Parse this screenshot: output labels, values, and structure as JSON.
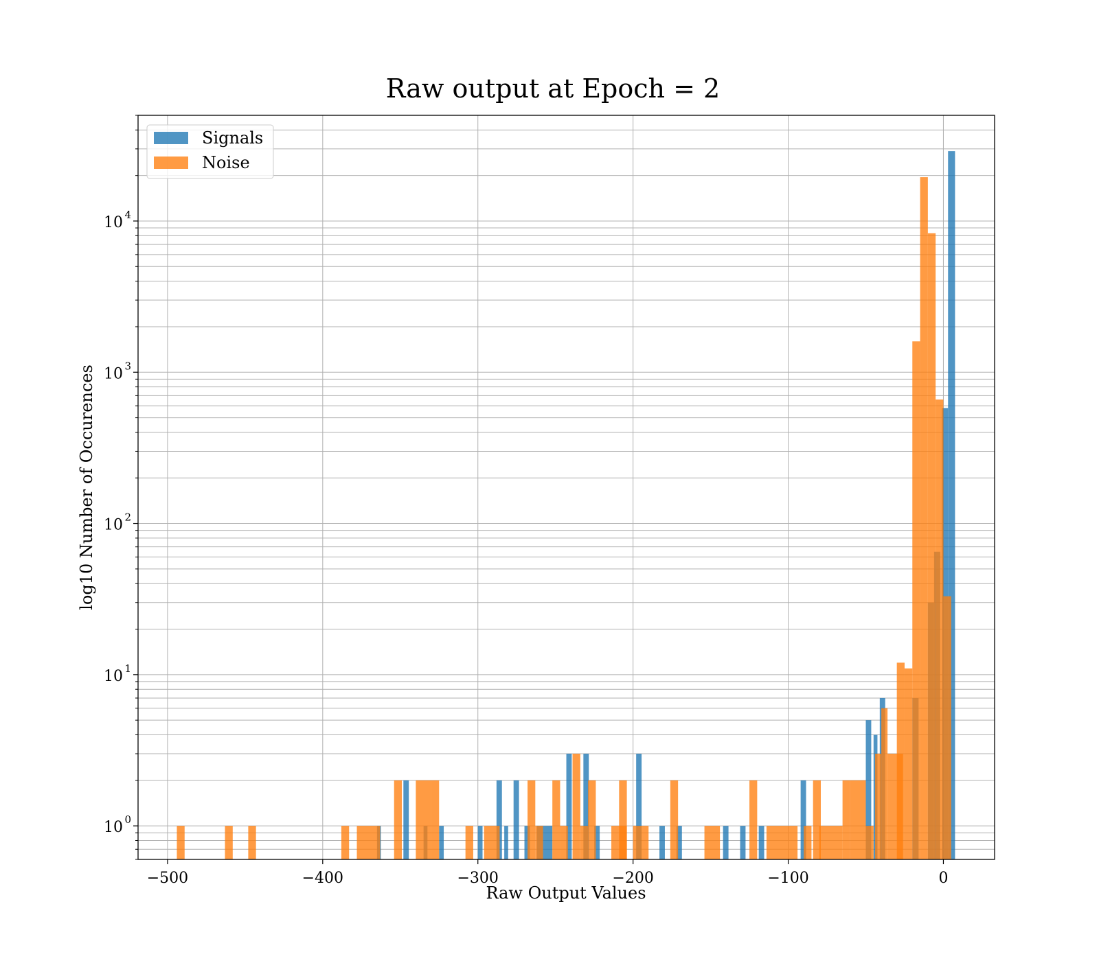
{
  "chart_data": {
    "type": "bar",
    "title": "Raw output at Epoch = 2",
    "xlabel": "Raw Output Values",
    "ylabel": "log10 Number of Occurences",
    "xlim": [
      -519,
      33
    ],
    "ylim": [
      0.6,
      50000
    ],
    "yscale": "log",
    "grid": true,
    "legend_position": "top-left",
    "bin_width": 5.0,
    "x_ticks": [
      {
        "value": -500,
        "label": "−500"
      },
      {
        "value": -400,
        "label": "−400"
      },
      {
        "value": -300,
        "label": "−300"
      },
      {
        "value": -200,
        "label": "−200"
      },
      {
        "value": -100,
        "label": "−100"
      },
      {
        "value": 0,
        "label": "0"
      }
    ],
    "y_ticks": [
      {
        "value": 1,
        "base": "10",
        "exp": "0"
      },
      {
        "value": 10,
        "base": "10",
        "exp": "1"
      },
      {
        "value": 100,
        "base": "10",
        "exp": "2"
      },
      {
        "value": 1000,
        "base": "10",
        "exp": "3"
      },
      {
        "value": 10000,
        "base": "10",
        "exp": "4"
      }
    ],
    "series": [
      {
        "name": "Signals",
        "color": "#1f77b4",
        "opacity": 0.78,
        "bins": [
          {
            "x": -365,
            "w": 2.5,
            "count": 1
          },
          {
            "x": -348,
            "w": 3.5,
            "count": 2
          },
          {
            "x": -335,
            "w": 2.5,
            "count": 1
          },
          {
            "x": -325,
            "w": 3,
            "count": 1
          },
          {
            "x": -300,
            "w": 3,
            "count": 1
          },
          {
            "x": -288,
            "w": 3.5,
            "count": 2
          },
          {
            "x": -283,
            "w": 2.5,
            "count": 1
          },
          {
            "x": -277,
            "w": 3.5,
            "count": 2
          },
          {
            "x": -270,
            "w": 3.5,
            "count": 1
          },
          {
            "x": -262,
            "w": 10,
            "count": 1
          },
          {
            "x": -243,
            "w": 3.5,
            "count": 3
          },
          {
            "x": -232,
            "w": 3.5,
            "count": 3
          },
          {
            "x": -225,
            "w": 3.5,
            "count": 1
          },
          {
            "x": -198,
            "w": 3.5,
            "count": 3
          },
          {
            "x": -183,
            "w": 3.5,
            "count": 1
          },
          {
            "x": -172,
            "w": 3.5,
            "count": 1
          },
          {
            "x": -142,
            "w": 3.5,
            "count": 1
          },
          {
            "x": -131,
            "w": 3.5,
            "count": 1
          },
          {
            "x": -119,
            "w": 3.5,
            "count": 1
          },
          {
            "x": -92,
            "w": 3.5,
            "count": 2
          },
          {
            "x": -50,
            "w": 3.5,
            "count": 5
          },
          {
            "x": -45,
            "w": 2.5,
            "count": 4
          },
          {
            "x": -41,
            "w": 3.5,
            "count": 7
          },
          {
            "x": -20,
            "w": 4,
            "count": 7
          },
          {
            "x": -10,
            "w": 4,
            "count": 30
          },
          {
            "x": -6,
            "w": 4,
            "count": 65
          },
          {
            "x": -1,
            "w": 4,
            "count": 580
          },
          {
            "x": 3,
            "w": 4.5,
            "count": 29000
          }
        ]
      },
      {
        "name": "Noise",
        "color": "#ff7f0e",
        "opacity": 0.78,
        "bins": [
          {
            "x": -494,
            "w": 5,
            "count": 1
          },
          {
            "x": -463,
            "w": 5,
            "count": 1
          },
          {
            "x": -448,
            "w": 5,
            "count": 1
          },
          {
            "x": -388,
            "w": 5,
            "count": 1
          },
          {
            "x": -378,
            "w": 15,
            "count": 1
          },
          {
            "x": -354,
            "w": 5,
            "count": 2
          },
          {
            "x": -340,
            "w": 10,
            "count": 2
          },
          {
            "x": -330,
            "w": 5,
            "count": 2
          },
          {
            "x": -308,
            "w": 5,
            "count": 1
          },
          {
            "x": -296,
            "w": 10,
            "count": 1
          },
          {
            "x": -268,
            "w": 5,
            "count": 2
          },
          {
            "x": -263,
            "w": 5,
            "count": 1
          },
          {
            "x": -252,
            "w": 5,
            "count": 2
          },
          {
            "x": -247,
            "w": 5,
            "count": 1
          },
          {
            "x": -239,
            "w": 5,
            "count": 3
          },
          {
            "x": -234,
            "w": 5,
            "count": 1
          },
          {
            "x": -229,
            "w": 5,
            "count": 2
          },
          {
            "x": -214,
            "w": 10,
            "count": 1
          },
          {
            "x": -209,
            "w": 5,
            "count": 2
          },
          {
            "x": -200,
            "w": 10,
            "count": 1
          },
          {
            "x": -176,
            "w": 5,
            "count": 2
          },
          {
            "x": -154,
            "w": 10,
            "count": 1
          },
          {
            "x": -125,
            "w": 5,
            "count": 2
          },
          {
            "x": -114,
            "w": 20,
            "count": 1
          },
          {
            "x": -90,
            "w": 5,
            "count": 1
          },
          {
            "x": -84,
            "w": 5,
            "count": 2
          },
          {
            "x": -80,
            "w": 15,
            "count": 1
          },
          {
            "x": -65,
            "w": 5,
            "count": 2
          },
          {
            "x": -60,
            "w": 10,
            "count": 2
          },
          {
            "x": -50,
            "w": 5,
            "count": 1
          },
          {
            "x": -44,
            "w": 4,
            "count": 3
          },
          {
            "x": -40,
            "w": 4,
            "count": 6
          },
          {
            "x": -36,
            "w": 10,
            "count": 3
          },
          {
            "x": -30,
            "w": 5,
            "count": 12
          },
          {
            "x": -25,
            "w": 5,
            "count": 11
          },
          {
            "x": -20,
            "w": 5,
            "count": 1600
          },
          {
            "x": -15,
            "w": 5,
            "count": 19500
          },
          {
            "x": -10,
            "w": 5,
            "count": 8300
          },
          {
            "x": -5,
            "w": 5,
            "count": 660
          },
          {
            "x": 0,
            "w": 5,
            "count": 33
          }
        ]
      }
    ]
  }
}
